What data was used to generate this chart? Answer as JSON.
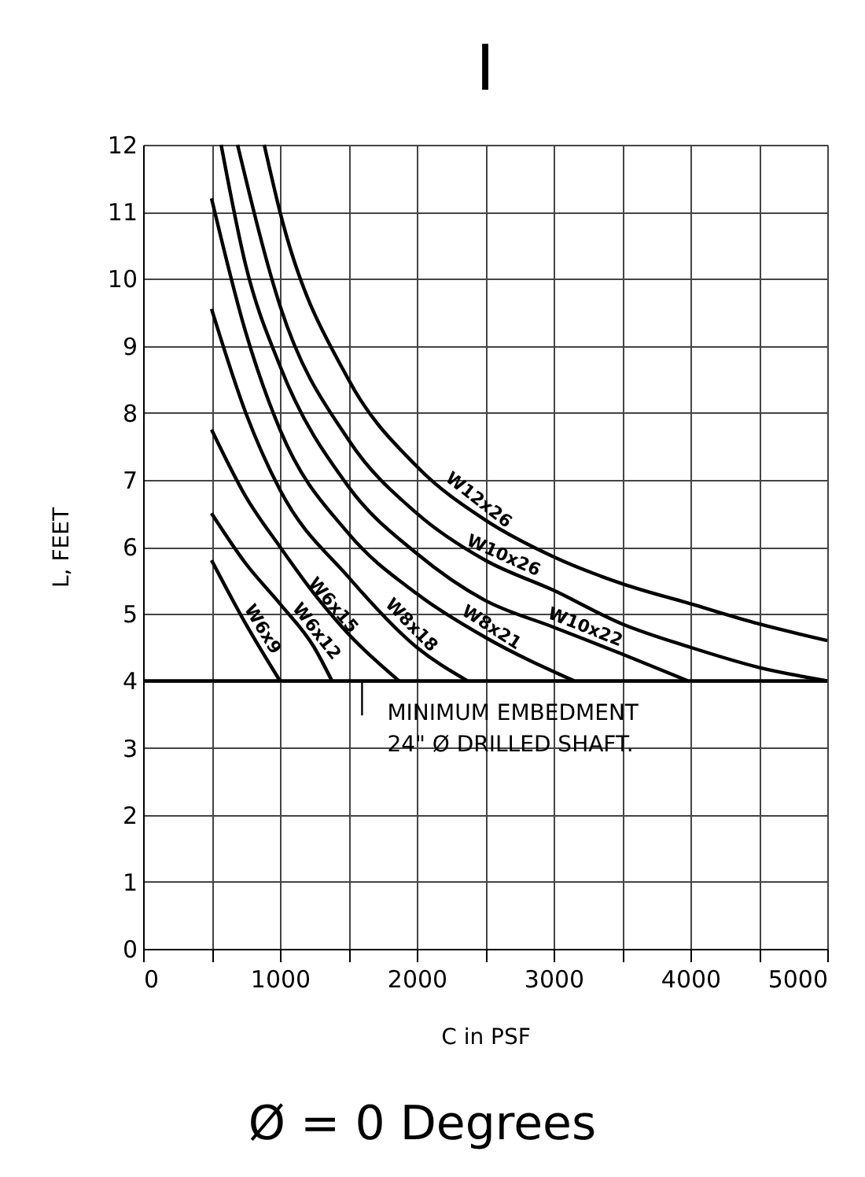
{
  "chart_data": {
    "type": "line",
    "title": "I",
    "subtitle": "Ø = 0 Degrees",
    "xlabel": "C in PSF",
    "ylabel": "L, FEET",
    "xlim": [
      0,
      5000
    ],
    "ylim": [
      0,
      12
    ],
    "xticks": [
      0,
      {
        "value": 500,
        "label": null
      },
      1000,
      {
        "value": 1500,
        "label": null
      },
      2000,
      {
        "value": 2500,
        "label": null
      },
      3000,
      {
        "value": 3500,
        "label": null
      },
      4000,
      {
        "value": 4500,
        "label": null
      },
      5000
    ],
    "yticks": [
      0,
      1,
      2,
      3,
      4,
      5,
      6,
      7,
      8,
      9,
      10,
      11,
      12
    ],
    "grid": true,
    "marker": "none",
    "line_style": "solid",
    "series": [
      {
        "name": "W6x9",
        "color": "#000000",
        "x": [
          500,
          750,
          1000
        ],
        "values": [
          5.8,
          4.85,
          4.0
        ]
      },
      {
        "name": "W6x12",
        "color": "#000000",
        "x": [
          500,
          750,
          1000,
          1250,
          1380
        ],
        "values": [
          6.5,
          5.75,
          5.15,
          4.5,
          4.0
        ]
      },
      {
        "name": "W6x15",
        "color": "#000000",
        "x": [
          500,
          750,
          1000,
          1250,
          1500,
          1870
        ],
        "values": [
          7.75,
          6.75,
          6.0,
          5.3,
          4.7,
          4.0
        ]
      },
      {
        "name": "W8x18",
        "color": "#000000",
        "x": [
          500,
          750,
          1000,
          1500,
          2000,
          2370
        ],
        "values": [
          9.55,
          8.0,
          6.85,
          5.55,
          4.5,
          4.0
        ]
      },
      {
        "name": "W8x21",
        "color": "#000000",
        "x": [
          500,
          750,
          1000,
          1500,
          2000,
          2500,
          3150
        ],
        "values": [
          11.2,
          9.2,
          7.75,
          6.2,
          5.3,
          4.65,
          4.0
        ]
      },
      {
        "name": "W10x22",
        "color": "#000000",
        "x": [
          570,
          750,
          1000,
          1500,
          2000,
          2500,
          3000,
          3500,
          3980
        ],
        "values": [
          12,
          10.2,
          8.7,
          6.9,
          5.9,
          5.2,
          4.8,
          4.4,
          4.0
        ]
      },
      {
        "name": "W10x26",
        "color": "#000000",
        "x": [
          690,
          1000,
          1500,
          2000,
          2500,
          3000,
          3500,
          4000,
          4500,
          5000
        ],
        "values": [
          12,
          9.6,
          7.6,
          6.5,
          5.8,
          5.35,
          4.85,
          4.5,
          4.2,
          4.0
        ]
      },
      {
        "name": "W12x26",
        "color": "#000000",
        "x": [
          885,
          1000,
          1500,
          2000,
          2500,
          3000,
          3500,
          4000,
          4500,
          5000
        ],
        "values": [
          12,
          11.0,
          8.5,
          7.2,
          6.4,
          5.85,
          5.45,
          5.15,
          4.85,
          4.6
        ]
      }
    ],
    "ref_lines": [
      {
        "axis": "y",
        "value": 4,
        "color": "#000000"
      }
    ],
    "annotations": [
      {
        "text": "MINIMUM EMBEDMENT\n24\" Ø DRILLED SHAFT.",
        "x": 1600,
        "y": 4
      }
    ]
  }
}
